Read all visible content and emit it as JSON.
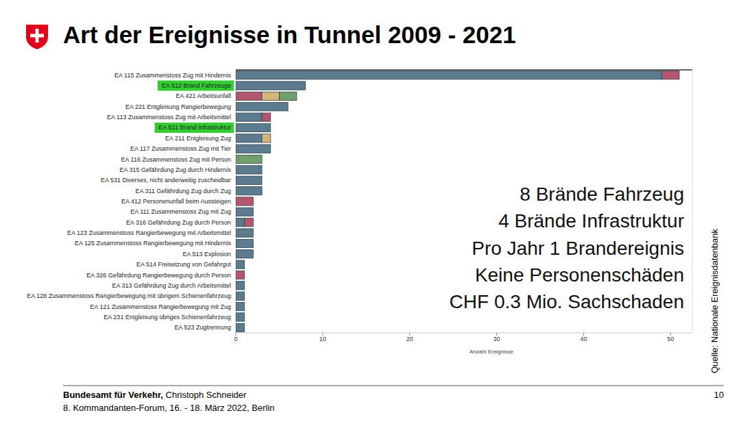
{
  "chart_data": {
    "type": "bar",
    "orientation": "horizontal",
    "stacked": true,
    "grid": false,
    "title": "Art der Ereignisse in Tunnel 2009 - 2021",
    "x_label": "Anzahl Ereignisse",
    "categories": [
      "EA 115 Zusammenstoss Zug mit Hindernis",
      "EA 512 Brand Fahrzeuge",
      "EA 421 Arbeitsunfall",
      "EA 221 Entgleisung Rangierbewegung",
      "EA 113 Zusammenstoss Zug mit Arbeitsmittel",
      "EA 511 Brand Infrastruktur",
      "EA 211 Entgleisung Zug",
      "EA 117 Zusammenstoss Zug mit Tier",
      "EA 116 Zusammenstoss Zug mit Person",
      "EA 315 Gefährdung Zug durch Hindernis",
      "EA 531 Diverses, nicht anderweitig zuscheidbar",
      "EA 311 Gefährdung Zug durch Zug",
      "EA 412 Personenunfall beim Aussteigen",
      "EA 111 Zusammenstoss Zug mit Zug",
      "EA 316 Gefährdung Zug durch Person",
      "EA 123 Zusammenstoss Rangierbewegung mit Arbeitsmittel",
      "EA 125 Zusammenstoss Rangierbewegung mit Hindernis",
      "EA 513 Explosion",
      "EA 514 Freisetzung von Gefahrgut",
      "EA 326 Gefährdung Rangierbewegung durch Person",
      "EA 313 Gefährdung Zug durch Arbeitsmittel",
      "EA 128 Zusammenstoss Rangierbewegung mit übrigem Schienenfahrzeug",
      "EA 121 Zusammenstoss Rangierbewegung mit Zug",
      "EA 231 Entgleisung übriges Schienenfahrzeug",
      "EA 523 Zugtrennung"
    ],
    "series": [
      {
        "color": "#5d7b8e",
        "values": [
          49,
          8,
          0,
          6,
          3,
          4,
          3,
          4,
          0,
          3,
          3,
          3,
          0,
          2,
          1,
          2,
          2,
          2,
          1,
          0,
          1,
          1,
          1,
          1,
          1
        ]
      },
      {
        "color": "#b5566f",
        "values": [
          2,
          0,
          3,
          0,
          1,
          0,
          0,
          0,
          0,
          0,
          0,
          0,
          2,
          0,
          1,
          0,
          0,
          0,
          0,
          1,
          0,
          0,
          0,
          0,
          0
        ]
      },
      {
        "color": "#d6b57a",
        "values": [
          0,
          0,
          2,
          0,
          0,
          0,
          1,
          0,
          0,
          0,
          0,
          0,
          0,
          0,
          0,
          0,
          0,
          0,
          0,
          0,
          0,
          0,
          0,
          0,
          0
        ]
      },
      {
        "color": "#6f9f6c",
        "values": [
          0,
          0,
          2,
          0,
          0,
          0,
          0,
          0,
          3,
          0,
          0,
          0,
          0,
          0,
          0,
          0,
          0,
          0,
          0,
          0,
          0,
          0,
          0,
          0,
          0
        ]
      }
    ],
    "xlim": [
      0,
      52.5
    ],
    "xticks": [
      0,
      10,
      20,
      30,
      40,
      50
    ],
    "annotations": [
      "8 Brände Fahrzeug",
      "4 Brände Infrastruktur",
      "Pro Jahr 1 Brandereignis",
      "Keine Personenschäden",
      "CHF 0.3 Mio. Sachschaden"
    ]
  },
  "slide": {
    "source": "Quelle: Nationale Ereignisdatenbank",
    "footer_org": "Bundesamt für Verkehr,",
    "footer_name": " Christoph Schneider",
    "footer_event": "8. Kommandanten-Forum, 16. - 18. März 2022, Berlin",
    "page": 10
  }
}
